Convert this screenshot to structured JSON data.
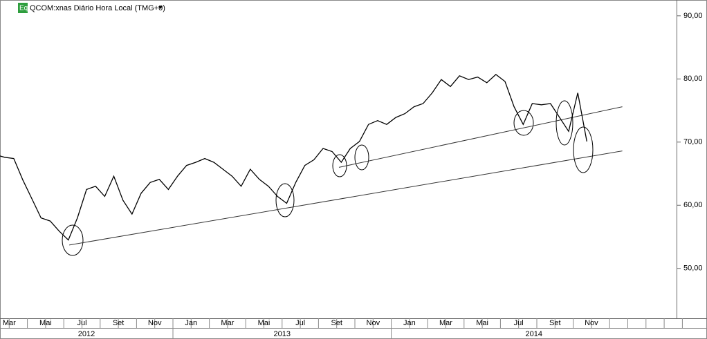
{
  "chart_data": {
    "type": "line",
    "badge": "Eq",
    "title": "QCOM:xnas Diário Hora Local (TMG+0)",
    "categories": [
      "Mar",
      null,
      null,
      null,
      "Mai",
      null,
      null,
      null,
      "Jul",
      null,
      null,
      null,
      "Set",
      null,
      null,
      null,
      "Nov",
      null,
      null,
      null,
      "Jan",
      null,
      null,
      null,
      "Mar",
      null,
      null,
      null,
      "Mai",
      null,
      null,
      null,
      "Jul",
      null,
      null,
      null,
      "Set",
      null,
      null,
      null,
      "Nov",
      null,
      null,
      null,
      "Jan",
      null,
      null,
      null,
      "Mar",
      null,
      null,
      null,
      "Mai",
      null,
      null,
      null,
      "Jul",
      null,
      null,
      null,
      "Set",
      null,
      null,
      null,
      "Nov",
      null
    ],
    "years": [
      {
        "label": "2012",
        "from": 0
      },
      {
        "label": "2013",
        "from": 20
      },
      {
        "label": "2014",
        "from": 44
      }
    ],
    "series": [
      {
        "name": "QCOM",
        "color": "#000000",
        "values": [
          68,
          67.6,
          67.4,
          64,
          61,
          58,
          57.5,
          55.9,
          54.5,
          58,
          62.5,
          63,
          61.4,
          64.6,
          60.8,
          58.6,
          61.9,
          63.6,
          64.1,
          62.5,
          64.6,
          66.3,
          66.8,
          67.4,
          66.8,
          65.7,
          64.6,
          63,
          65.7,
          64.1,
          63,
          61.4,
          60.3,
          63.6,
          66.3,
          67.2,
          69,
          68.5,
          66.8,
          69,
          70.1,
          72.8,
          73.4,
          72.8,
          73.9,
          74.5,
          75.6,
          76.1,
          77.8,
          79.9,
          78.8,
          80.5,
          79.9,
          80.3,
          79.4,
          80.7,
          79.6,
          75.6,
          72.8,
          76.1,
          75.9,
          76.1,
          73.9,
          71.7,
          77.8,
          70.1
        ]
      }
    ],
    "trendlines": [
      {
        "from": [
          37.75,
          66
        ],
        "to": [
          68.9,
          75.6
        ]
      },
      {
        "from": [
          8.1,
          53.7
        ],
        "to": [
          68.9,
          68.6
        ]
      }
    ],
    "ylim": [
      42.1,
      92.5
    ],
    "yticks": [
      {
        "value": 50,
        "label": "50,00"
      },
      {
        "value": 60,
        "label": "60,00"
      },
      {
        "value": 70,
        "label": "70,00"
      },
      {
        "value": 80,
        "label": "80,00"
      },
      {
        "value": 90,
        "label": "90,00"
      }
    ]
  }
}
